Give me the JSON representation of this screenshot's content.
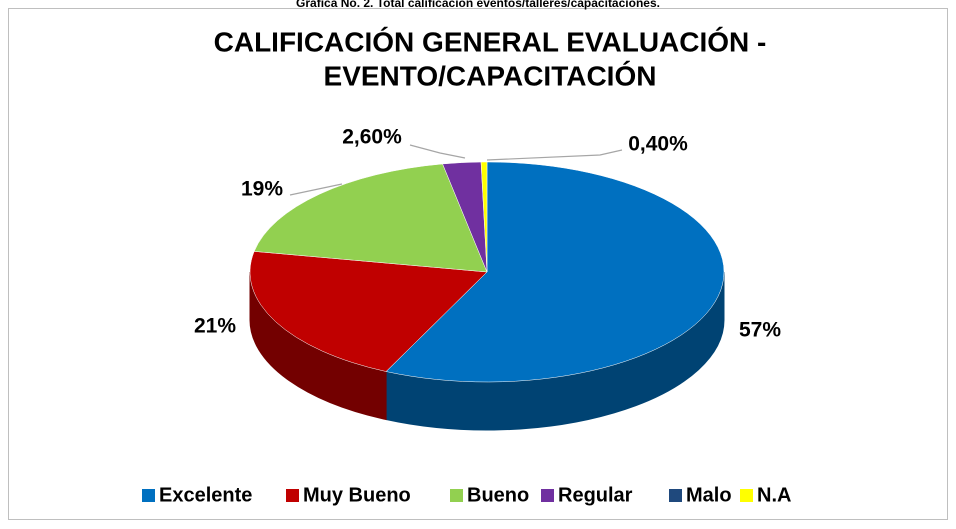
{
  "caption": "Grafica No. 2. Total calificación eventos/talleres/capacitaciones.",
  "chart_data": {
    "type": "pie3d",
    "title": [
      "CALIFICACIÓN GENERAL EVALUACIÓN -",
      "EVENTO/CAPACITACIÓN"
    ],
    "categories": [
      "Excelente",
      "Muy Bueno",
      "Bueno",
      "Regular",
      "Malo",
      "N.A"
    ],
    "values": [
      57,
      21,
      19,
      2.6,
      0,
      0.4
    ],
    "value_labels": [
      "57%",
      "21%",
      "19%",
      "2,60%",
      null,
      "0,40%"
    ],
    "colors": [
      "#0070c0",
      "#c00000",
      "#92d050",
      "#7030a0",
      "#1f497d",
      "#ffff00"
    ],
    "legend": "bottom"
  }
}
